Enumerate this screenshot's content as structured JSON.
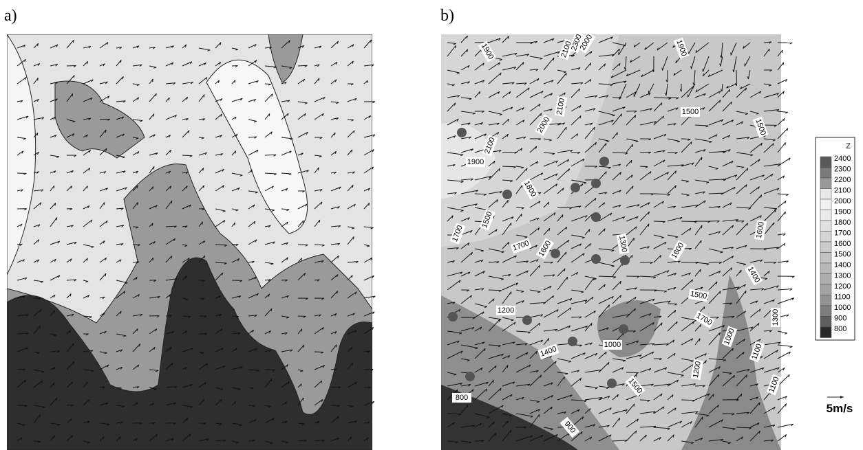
{
  "panels": [
    {
      "label": "a)"
    },
    {
      "label": "b)"
    }
  ],
  "contour_labels": [
    1900,
    2100,
    2300,
    2000,
    1900,
    1500,
    1500,
    2000,
    2100,
    1900,
    2100,
    1800,
    1500,
    1700,
    1700,
    1600,
    1300,
    1600,
    1600,
    1400,
    1500,
    1700,
    1200,
    1000,
    1400,
    1000,
    1100,
    1300,
    1500,
    1200,
    1100,
    800,
    900
  ],
  "legend": {
    "title": "Z",
    "levels": [
      2400,
      2300,
      2200,
      2100,
      2000,
      1900,
      1800,
      1700,
      1600,
      1500,
      1400,
      1300,
      1200,
      1100,
      1000,
      900,
      800
    ],
    "colors": [
      "#5a5a5a",
      "#7a7a7a",
      "#999",
      "#e8e8e8",
      "#f2f2f2",
      "#ebebeb",
      "#e0e0e0",
      "#d5d5d5",
      "#cbcbcb",
      "#c2c2c2",
      "#b8b8b8",
      "#adadad",
      "#a2a2a2",
      "#939393",
      "#7d7d7d",
      "#5e5e5e",
      "#2a2a2a"
    ]
  },
  "scale": {
    "label": "5m/s"
  }
}
